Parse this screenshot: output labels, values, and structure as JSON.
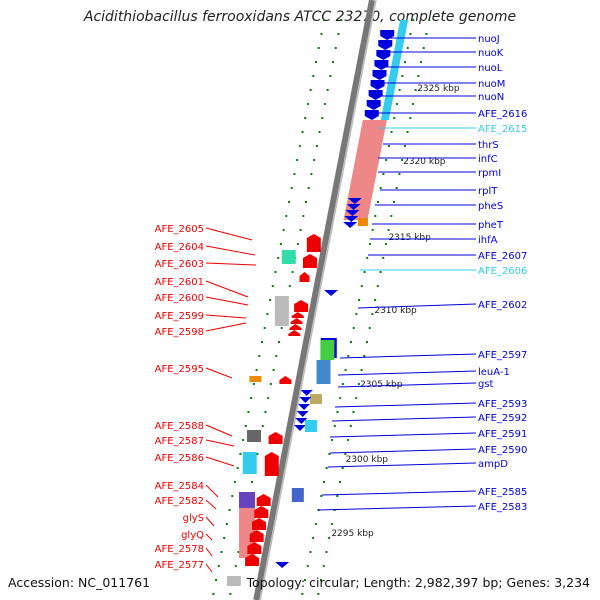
{
  "title": "Acidithiobacillus ferrooxidans ATCC 23270, complete genome",
  "footer": {
    "accession": "Accession: NC_011761",
    "topology": "Topology: circular; Length: 2,982,397 bp; Genes: 3,234"
  },
  "colors": {
    "plus_strand": "#0000dd",
    "minus_strand": "#ee0000",
    "highlight": "#33ccee",
    "backbone": "#777777",
    "tick": "#117711"
  },
  "scale_labels": [
    "2325 kbp",
    "2320 kbp",
    "2315 kbp",
    "2310 kbp",
    "2305 kbp",
    "2300 kbp",
    "2295 kbp"
  ],
  "right_labels": [
    "nuoJ",
    "nuoK",
    "nuoL",
    "nuoM",
    "nuoN",
    "AFE_2616",
    "AFE_2615",
    "thrS",
    "infC",
    "rpmI",
    "rplT",
    "pheS",
    "pheT",
    "ihfA",
    "AFE_2607",
    "AFE_2606",
    "AFE_2602",
    "AFE_2597",
    "leuA-1",
    "gst",
    "AFE_2593",
    "AFE_2592",
    "AFE_2591",
    "AFE_2590",
    "ampD",
    "AFE_2585",
    "AFE_2583"
  ],
  "left_labels": [
    "AFE_2605",
    "AFE_2604",
    "AFE_2603",
    "AFE_2601",
    "AFE_2600",
    "AFE_2599",
    "AFE_2598",
    "AFE_2595",
    "AFE_2588",
    "AFE_2587",
    "AFE_2586",
    "AFE_2584",
    "AFE_2582",
    "glyS",
    "glyQ",
    "AFE_2578",
    "AFE_2577"
  ]
}
